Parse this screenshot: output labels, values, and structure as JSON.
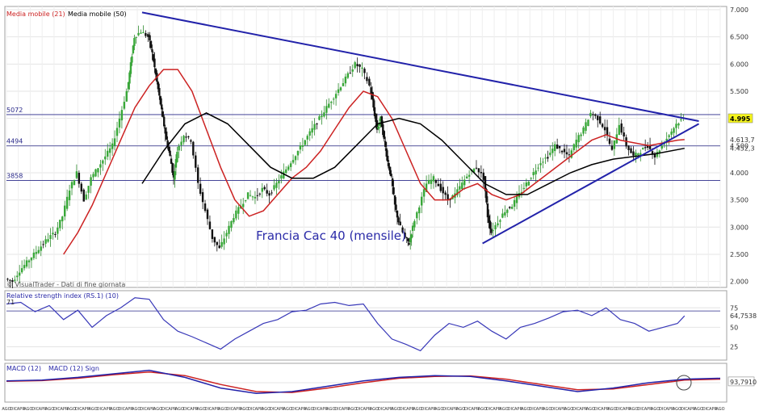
{
  "chart_data": {
    "type": "line",
    "title": "Francia Cac 40 (mensile)",
    "watermark": "© VisualTrader - Dati di fine giornata",
    "price_panel": {
      "ylim": [
        1.95,
        7.0
      ],
      "ticks": [
        "7.000",
        "6.500",
        "6.000",
        "5.500",
        "5.000",
        "4.500",
        "4.000",
        "3.500",
        "3.000",
        "2.500",
        "2.000"
      ],
      "tick_values": [
        7.0,
        6.5,
        6.0,
        5.5,
        5.0,
        4.5,
        4.0,
        3.5,
        3.0,
        2.5,
        2.0
      ],
      "legend": [
        {
          "name": "Media mobile (21)",
          "color": "#cc2222"
        },
        {
          "name": "Media mobile (50)",
          "color": "#000000"
        }
      ],
      "levels": [
        {
          "label": "5072",
          "value": 5.07
        },
        {
          "label": "4494",
          "value": 4.494
        },
        {
          "label": "3858",
          "value": 3.858
        }
      ],
      "value_labels": [
        {
          "text": "4.995",
          "value": 4.995,
          "highlight": true
        },
        {
          "text": "4.613,7",
          "value": 4.61,
          "highlight": false
        },
        {
          "text": "4.452,3",
          "value": 4.45,
          "highlight": false
        }
      ],
      "trend_up": {
        "from": [
          0.667,
          2.7
        ],
        "to": [
          0.97,
          4.9
        ]
      },
      "trend_down": {
        "from": [
          0.19,
          6.95
        ],
        "to": [
          0.97,
          4.95
        ]
      },
      "close_series": [
        [
          0.0,
          2.05
        ],
        [
          0.01,
          2.0
        ],
        [
          0.02,
          2.2
        ],
        [
          0.03,
          2.35
        ],
        [
          0.04,
          2.5
        ],
        [
          0.05,
          2.65
        ],
        [
          0.06,
          2.8
        ],
        [
          0.07,
          2.9
        ],
        [
          0.08,
          3.2
        ],
        [
          0.09,
          3.7
        ],
        [
          0.1,
          4.0
        ],
        [
          0.11,
          3.5
        ],
        [
          0.12,
          3.9
        ],
        [
          0.13,
          4.1
        ],
        [
          0.14,
          4.3
        ],
        [
          0.15,
          4.5
        ],
        [
          0.16,
          5.0
        ],
        [
          0.17,
          5.5
        ],
        [
          0.175,
          6.0
        ],
        [
          0.18,
          6.5
        ],
        [
          0.19,
          6.6
        ],
        [
          0.2,
          6.5
        ],
        [
          0.205,
          6.2
        ],
        [
          0.21,
          5.8
        ],
        [
          0.215,
          5.4
        ],
        [
          0.22,
          5.0
        ],
        [
          0.225,
          4.6
        ],
        [
          0.23,
          4.3
        ],
        [
          0.235,
          3.9
        ],
        [
          0.24,
          4.4
        ],
        [
          0.25,
          4.7
        ],
        [
          0.26,
          4.6
        ],
        [
          0.27,
          3.8
        ],
        [
          0.28,
          3.3
        ],
        [
          0.29,
          2.8
        ],
        [
          0.3,
          2.6
        ],
        [
          0.31,
          2.9
        ],
        [
          0.32,
          3.2
        ],
        [
          0.33,
          3.4
        ],
        [
          0.34,
          3.6
        ],
        [
          0.35,
          3.55
        ],
        [
          0.36,
          3.7
        ],
        [
          0.37,
          3.6
        ],
        [
          0.38,
          3.8
        ],
        [
          0.39,
          4.0
        ],
        [
          0.4,
          4.2
        ],
        [
          0.41,
          4.4
        ],
        [
          0.42,
          4.6
        ],
        [
          0.43,
          4.8
        ],
        [
          0.44,
          5.0
        ],
        [
          0.45,
          5.2
        ],
        [
          0.46,
          5.4
        ],
        [
          0.47,
          5.6
        ],
        [
          0.48,
          5.8
        ],
        [
          0.49,
          6.0
        ],
        [
          0.5,
          5.9
        ],
        [
          0.51,
          5.6
        ],
        [
          0.515,
          5.2
        ],
        [
          0.52,
          4.8
        ],
        [
          0.525,
          5.0
        ],
        [
          0.53,
          4.6
        ],
        [
          0.535,
          4.2
        ],
        [
          0.54,
          3.9
        ],
        [
          0.545,
          3.4
        ],
        [
          0.55,
          3.1
        ],
        [
          0.56,
          2.8
        ],
        [
          0.565,
          2.7
        ],
        [
          0.57,
          3.0
        ],
        [
          0.58,
          3.4
        ],
        [
          0.59,
          3.8
        ],
        [
          0.6,
          3.9
        ],
        [
          0.61,
          3.7
        ],
        [
          0.62,
          3.5
        ],
        [
          0.63,
          3.6
        ],
        [
          0.64,
          3.8
        ],
        [
          0.65,
          4.0
        ],
        [
          0.66,
          4.1
        ],
        [
          0.67,
          3.9
        ],
        [
          0.675,
          3.2
        ],
        [
          0.68,
          2.9
        ],
        [
          0.69,
          3.1
        ],
        [
          0.7,
          3.3
        ],
        [
          0.71,
          3.4
        ],
        [
          0.72,
          3.6
        ],
        [
          0.73,
          3.8
        ],
        [
          0.74,
          4.0
        ],
        [
          0.75,
          4.2
        ],
        [
          0.76,
          4.3
        ],
        [
          0.77,
          4.5
        ],
        [
          0.78,
          4.4
        ],
        [
          0.79,
          4.3
        ],
        [
          0.8,
          4.6
        ],
        [
          0.81,
          4.8
        ],
        [
          0.82,
          5.1
        ],
        [
          0.83,
          5.0
        ],
        [
          0.84,
          4.8
        ],
        [
          0.85,
          4.4
        ],
        [
          0.86,
          4.9
        ],
        [
          0.87,
          4.5
        ],
        [
          0.88,
          4.3
        ],
        [
          0.89,
          4.4
        ],
        [
          0.9,
          4.5
        ],
        [
          0.91,
          4.3
        ],
        [
          0.92,
          4.5
        ],
        [
          0.93,
          4.7
        ],
        [
          0.94,
          4.9
        ],
        [
          0.95,
          5.0
        ]
      ],
      "ma21_series": [
        [
          0.08,
          2.5
        ],
        [
          0.1,
          2.9
        ],
        [
          0.12,
          3.4
        ],
        [
          0.14,
          4.0
        ],
        [
          0.16,
          4.6
        ],
        [
          0.18,
          5.2
        ],
        [
          0.2,
          5.6
        ],
        [
          0.22,
          5.9
        ],
        [
          0.24,
          5.9
        ],
        [
          0.26,
          5.5
        ],
        [
          0.28,
          4.8
        ],
        [
          0.3,
          4.1
        ],
        [
          0.32,
          3.5
        ],
        [
          0.34,
          3.2
        ],
        [
          0.36,
          3.3
        ],
        [
          0.38,
          3.6
        ],
        [
          0.4,
          3.9
        ],
        [
          0.42,
          4.1
        ],
        [
          0.44,
          4.4
        ],
        [
          0.46,
          4.8
        ],
        [
          0.48,
          5.2
        ],
        [
          0.5,
          5.5
        ],
        [
          0.52,
          5.4
        ],
        [
          0.54,
          5.0
        ],
        [
          0.56,
          4.4
        ],
        [
          0.58,
          3.8
        ],
        [
          0.6,
          3.5
        ],
        [
          0.62,
          3.5
        ],
        [
          0.64,
          3.7
        ],
        [
          0.66,
          3.8
        ],
        [
          0.68,
          3.6
        ],
        [
          0.7,
          3.5
        ],
        [
          0.72,
          3.6
        ],
        [
          0.74,
          3.8
        ],
        [
          0.76,
          4.0
        ],
        [
          0.78,
          4.2
        ],
        [
          0.8,
          4.4
        ],
        [
          0.82,
          4.6
        ],
        [
          0.84,
          4.7
        ],
        [
          0.86,
          4.6
        ],
        [
          0.88,
          4.55
        ],
        [
          0.9,
          4.5
        ],
        [
          0.92,
          4.55
        ],
        [
          0.94,
          4.6
        ],
        [
          0.95,
          4.61
        ]
      ],
      "ma50_series": [
        [
          0.19,
          3.8
        ],
        [
          0.22,
          4.4
        ],
        [
          0.25,
          4.9
        ],
        [
          0.28,
          5.1
        ],
        [
          0.31,
          4.9
        ],
        [
          0.34,
          4.5
        ],
        [
          0.37,
          4.1
        ],
        [
          0.4,
          3.9
        ],
        [
          0.43,
          3.9
        ],
        [
          0.46,
          4.1
        ],
        [
          0.49,
          4.5
        ],
        [
          0.52,
          4.9
        ],
        [
          0.55,
          5.0
        ],
        [
          0.58,
          4.9
        ],
        [
          0.61,
          4.6
        ],
        [
          0.64,
          4.2
        ],
        [
          0.67,
          3.8
        ],
        [
          0.7,
          3.6
        ],
        [
          0.73,
          3.6
        ],
        [
          0.76,
          3.8
        ],
        [
          0.79,
          4.0
        ],
        [
          0.82,
          4.15
        ],
        [
          0.85,
          4.25
        ],
        [
          0.88,
          4.3
        ],
        [
          0.91,
          4.35
        ],
        [
          0.95,
          4.45
        ]
      ]
    },
    "rsi_panel": {
      "label": "Relative strength index (RS.1) (10)",
      "ylim": [
        10,
        95
      ],
      "ticks": [
        "75",
        "50",
        "25"
      ],
      "tick_values": [
        75,
        50,
        25
      ],
      "level_label": "71",
      "level_value": 71,
      "last_label": "64,7538",
      "last_value": 64.75,
      "series": [
        [
          0.0,
          80
        ],
        [
          0.02,
          82
        ],
        [
          0.04,
          70
        ],
        [
          0.06,
          78
        ],
        [
          0.08,
          60
        ],
        [
          0.1,
          72
        ],
        [
          0.12,
          50
        ],
        [
          0.14,
          65
        ],
        [
          0.16,
          75
        ],
        [
          0.18,
          88
        ],
        [
          0.2,
          86
        ],
        [
          0.22,
          60
        ],
        [
          0.24,
          45
        ],
        [
          0.26,
          38
        ],
        [
          0.28,
          30
        ],
        [
          0.3,
          22
        ],
        [
          0.32,
          35
        ],
        [
          0.34,
          45
        ],
        [
          0.36,
          55
        ],
        [
          0.38,
          60
        ],
        [
          0.4,
          70
        ],
        [
          0.42,
          72
        ],
        [
          0.44,
          80
        ],
        [
          0.46,
          82
        ],
        [
          0.48,
          78
        ],
        [
          0.5,
          80
        ],
        [
          0.52,
          55
        ],
        [
          0.54,
          35
        ],
        [
          0.56,
          28
        ],
        [
          0.58,
          20
        ],
        [
          0.6,
          40
        ],
        [
          0.62,
          55
        ],
        [
          0.64,
          50
        ],
        [
          0.66,
          58
        ],
        [
          0.68,
          45
        ],
        [
          0.7,
          35
        ],
        [
          0.72,
          50
        ],
        [
          0.74,
          55
        ],
        [
          0.76,
          62
        ],
        [
          0.78,
          70
        ],
        [
          0.8,
          72
        ],
        [
          0.82,
          65
        ],
        [
          0.84,
          75
        ],
        [
          0.86,
          60
        ],
        [
          0.88,
          55
        ],
        [
          0.9,
          45
        ],
        [
          0.92,
          50
        ],
        [
          0.94,
          55
        ],
        [
          0.95,
          64.75
        ]
      ]
    },
    "macd_panel": {
      "label": "MACD (12)",
      "label2": "MACD (12) Sign",
      "ylim": [
        -1.0,
        1.0
      ],
      "last_label": "93,7910",
      "last_value": 0.05,
      "macd_series": [
        [
          0.0,
          0.1
        ],
        [
          0.05,
          0.15
        ],
        [
          0.1,
          0.3
        ],
        [
          0.15,
          0.5
        ],
        [
          0.2,
          0.7
        ],
        [
          0.25,
          0.3
        ],
        [
          0.3,
          -0.3
        ],
        [
          0.35,
          -0.6
        ],
        [
          0.4,
          -0.5
        ],
        [
          0.45,
          -0.2
        ],
        [
          0.5,
          0.1
        ],
        [
          0.55,
          0.3
        ],
        [
          0.6,
          0.4
        ],
        [
          0.65,
          0.35
        ],
        [
          0.7,
          0.1
        ],
        [
          0.75,
          -0.2
        ],
        [
          0.8,
          -0.5
        ],
        [
          0.85,
          -0.3
        ],
        [
          0.9,
          0.0
        ],
        [
          0.95,
          0.2
        ],
        [
          1.0,
          0.25
        ]
      ],
      "signal_series": [
        [
          0.0,
          0.08
        ],
        [
          0.05,
          0.12
        ],
        [
          0.1,
          0.25
        ],
        [
          0.15,
          0.45
        ],
        [
          0.2,
          0.6
        ],
        [
          0.25,
          0.4
        ],
        [
          0.3,
          -0.1
        ],
        [
          0.35,
          -0.5
        ],
        [
          0.4,
          -0.55
        ],
        [
          0.45,
          -0.3
        ],
        [
          0.5,
          0.0
        ],
        [
          0.55,
          0.25
        ],
        [
          0.6,
          0.35
        ],
        [
          0.65,
          0.38
        ],
        [
          0.7,
          0.2
        ],
        [
          0.75,
          -0.1
        ],
        [
          0.8,
          -0.4
        ],
        [
          0.85,
          -0.35
        ],
        [
          0.9,
          -0.1
        ],
        [
          0.95,
          0.15
        ],
        [
          1.0,
          0.2
        ]
      ]
    },
    "x_ticks": [
      "AGO",
      "DIC",
      "APR",
      "AGO",
      "DIC",
      "APR",
      "AGO",
      "DIC",
      "APR",
      "AGO",
      "DIC",
      "APR",
      "AGO",
      "DIC",
      "APR",
      "AGO",
      "DIC",
      "APR",
      "AGO",
      "DIC",
      "APR",
      "AGO",
      "DIC",
      "APR",
      "AGO",
      "DIC",
      "APR",
      "AGO",
      "DIC",
      "APR",
      "AGO",
      "DIC",
      "APR",
      "AGO",
      "DIC",
      "APR",
      "AGO",
      "DIC",
      "APR",
      "AGO",
      "DIC",
      "APR",
      "AGO",
      "DIC",
      "APR",
      "AGO",
      "DIC",
      "APR",
      "AGO",
      "DIC",
      "APR",
      "AGO",
      "DIC",
      "APR",
      "AGO",
      "DIC",
      "APR",
      "AGO",
      "DIC",
      "APR",
      "AGO",
      "DIC",
      "APR",
      "AGO",
      "DIC",
      "APR",
      "AGO",
      "DIC",
      "APR",
      "AGO",
      "DIC",
      "APR",
      "AGO",
      "DIC",
      "APR",
      "AGO",
      "DIC",
      "APR",
      "AGO",
      "DIC",
      "APR",
      "AGO",
      "DIC",
      "APR",
      "AGO",
      "DIC",
      "APR",
      "AGO",
      "DIC",
      "APR",
      "AGO",
      "DIC",
      "APR",
      "AGO",
      "DIC",
      "APR",
      "AGO",
      "DIC",
      "APR",
      "AGO"
    ]
  }
}
